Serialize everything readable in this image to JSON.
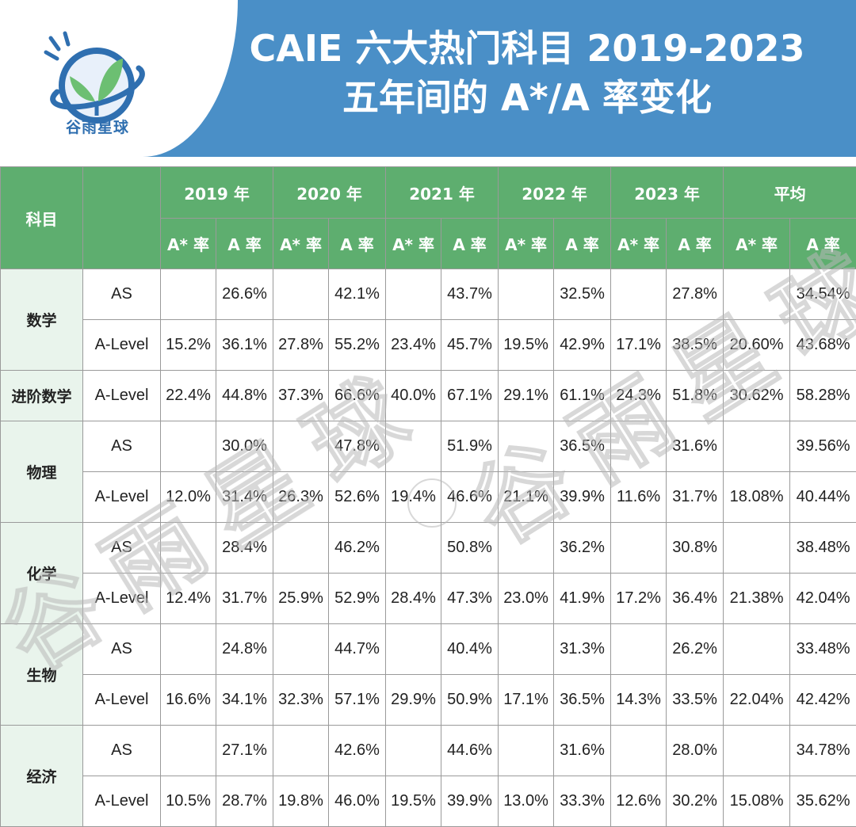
{
  "header": {
    "title_line1": "CAIE 六大热门科目 2019-2023",
    "title_line2": "五年间的 A*/A 率变化",
    "logo_text": "谷雨星球"
  },
  "table": {
    "subject_header": "科目",
    "years": [
      "2019 年",
      "2020 年",
      "2021 年",
      "2022 年",
      "2023 年",
      "平均"
    ],
    "rate_labels": [
      "A* 率",
      "A 率"
    ],
    "rows": [
      {
        "subject": "数学",
        "level": "AS",
        "values": [
          "",
          "26.6%",
          "",
          "42.1%",
          "",
          "43.7%",
          "",
          "32.5%",
          "",
          "27.8%",
          "",
          "34.54%"
        ]
      },
      {
        "subject": "",
        "level": "A-Level",
        "values": [
          "15.2%",
          "36.1%",
          "27.8%",
          "55.2%",
          "23.4%",
          "45.7%",
          "19.5%",
          "42.9%",
          "17.1%",
          "38.5%",
          "20.60%",
          "43.68%"
        ]
      },
      {
        "subject": "进阶数学",
        "level": "A-Level",
        "values": [
          "22.4%",
          "44.8%",
          "37.3%",
          "66.6%",
          "40.0%",
          "67.1%",
          "29.1%",
          "61.1%",
          "24.3%",
          "51.8%",
          "30.62%",
          "58.28%"
        ]
      },
      {
        "subject": "物理",
        "level": "AS",
        "values": [
          "",
          "30.0%",
          "",
          "47.8%",
          "",
          "51.9%",
          "",
          "36.5%",
          "",
          "31.6%",
          "",
          "39.56%"
        ]
      },
      {
        "subject": "",
        "level": "A-Level",
        "values": [
          "12.0%",
          "31.4%",
          "26.3%",
          "52.6%",
          "19.4%",
          "46.6%",
          "21.1%",
          "39.9%",
          "11.6%",
          "31.7%",
          "18.08%",
          "40.44%"
        ]
      },
      {
        "subject": "化学",
        "level": "AS",
        "values": [
          "",
          "28.4%",
          "",
          "46.2%",
          "",
          "50.8%",
          "",
          "36.2%",
          "",
          "30.8%",
          "",
          "38.48%"
        ]
      },
      {
        "subject": "",
        "level": "A-Level",
        "values": [
          "12.4%",
          "31.7%",
          "25.9%",
          "52.9%",
          "28.4%",
          "47.3%",
          "23.0%",
          "41.9%",
          "17.2%",
          "36.4%",
          "21.38%",
          "42.04%"
        ]
      },
      {
        "subject": "生物",
        "level": "AS",
        "values": [
          "",
          "24.8%",
          "",
          "44.7%",
          "",
          "40.4%",
          "",
          "31.3%",
          "",
          "26.2%",
          "",
          "33.48%"
        ]
      },
      {
        "subject": "",
        "level": "A-Level",
        "values": [
          "16.6%",
          "34.1%",
          "32.3%",
          "57.1%",
          "29.9%",
          "50.9%",
          "17.1%",
          "36.5%",
          "14.3%",
          "33.5%",
          "22.04%",
          "42.42%"
        ]
      },
      {
        "subject": "经济",
        "level": "AS",
        "values": [
          "",
          "27.1%",
          "",
          "42.6%",
          "",
          "44.6%",
          "",
          "31.6%",
          "",
          "28.0%",
          "",
          "34.78%"
        ]
      },
      {
        "subject": "",
        "level": "A-Level",
        "values": [
          "10.5%",
          "28.7%",
          "19.8%",
          "46.0%",
          "19.5%",
          "39.9%",
          "13.0%",
          "33.3%",
          "12.6%",
          "30.2%",
          "15.08%",
          "35.62%"
        ]
      }
    ]
  },
  "watermark": {
    "text": "谷雨星球"
  },
  "colors": {
    "header_blue": "#4a8fc7",
    "table_header_green": "#5eae6f",
    "subject_cell_bg": "#e9f4ec",
    "logo_leaf_green": "#6cbf72"
  }
}
